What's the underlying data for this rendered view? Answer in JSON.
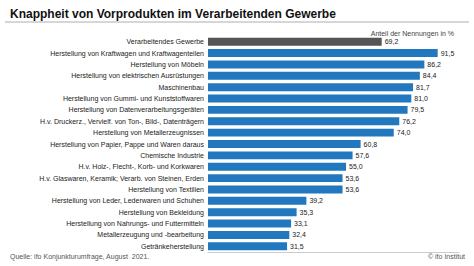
{
  "chart_data": {
    "type": "bar",
    "orientation": "horizontal",
    "title": "Knappheit von Vorprodukten im Verarbeitenden Gewerbe",
    "subtitle": "Anteil der Nennungen in %",
    "annotations": [
      "Quelle: ifo Konjunkturumfrage, August  2021.",
      "© ifo Institut"
    ],
    "categories": [
      "Getränkeherstellung",
      "Metallerzeugung und -bearbeitung",
      "Herstellung von Nahrungs- und Futtermitteln",
      "Herstellung von Bekleidung",
      "Herstellung von Leder, Lederwaren und Schuhen",
      "Herstellung von Textilien",
      "H.v. Glaswaren, Keramik; Verarb. von Steinen, Erden",
      "H.v. Holz-, Flecht-, Korb- und Korkwaren",
      "Chemische Industrie",
      "Herstellung von Papier, Pappe und Waren daraus",
      "Herstellung von Metallerzeugnissen",
      "H.v. Druckerz., Vervielf. von Ton-, Bild-, Datenträgern",
      "Herstellung von Datenverarbeitungsgeräten",
      "Herstellung von Gummi- und Kunststoffwaren",
      "Maschinenbau",
      "Herstellung von elektrischen Ausrüstungen",
      "Herstellung von Möbeln",
      "Herstellung von Kraftwagen und Kraftwagenteilen",
      "Verarbeitendes Gewerbe"
    ],
    "values": [
      31.5,
      32.4,
      33.1,
      35.3,
      39.2,
      53.6,
      53.6,
      55.0,
      57.6,
      60.8,
      74.0,
      76.2,
      79.5,
      81.0,
      81.7,
      84.4,
      86.2,
      91.5,
      69.2
    ],
    "value_labels": [
      "31,5",
      "32,4",
      "33,1",
      "35,3",
      "39,2",
      "53,6",
      "53,6",
      "55,0",
      "57,6",
      "60,8",
      "74,0",
      "76,2",
      "79,5",
      "81,0",
      "81,7",
      "84,4",
      "86,2",
      "91,5",
      "69,2"
    ],
    "data_labels": true,
    "colors": [
      "#2278be",
      "#2278be",
      "#2278be",
      "#2278be",
      "#2278be",
      "#2278be",
      "#2278be",
      "#2278be",
      "#2278be",
      "#2278be",
      "#2278be",
      "#2278be",
      "#2278be",
      "#2278be",
      "#2278be",
      "#2278be",
      "#2278be",
      "#2278be",
      "#555555"
    ],
    "xlim": [
      0,
      100
    ],
    "tick_labels": "y",
    "grid": false
  }
}
